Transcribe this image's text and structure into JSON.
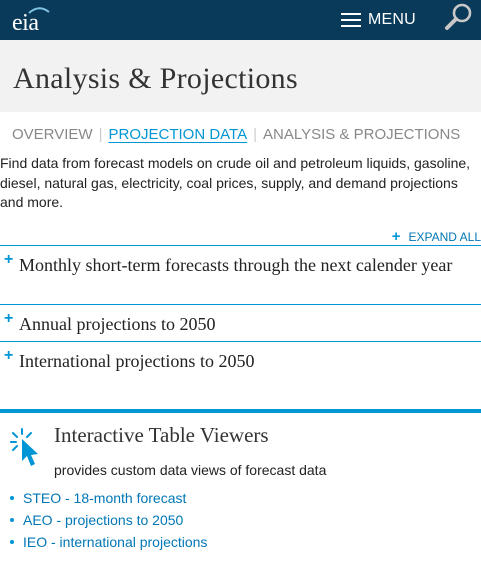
{
  "header": {
    "logo_text": "eia",
    "menu_label": "MENU",
    "icons": [
      "hamburger-icon",
      "search-icon"
    ],
    "bar_color": "#0a3a5a"
  },
  "page": {
    "title": "Analysis & Projections"
  },
  "subnav": {
    "tabs": [
      {
        "label": "OVERVIEW",
        "active": false
      },
      {
        "label": "PROJECTION DATA",
        "active": true
      },
      {
        "label": "ANALYSIS & PROJECTIONS",
        "active": false
      }
    ],
    "separator": "|"
  },
  "intro": {
    "text": "Find data from forecast models on crude oil and petroleum liquids, gasoline, diesel, natural gas, electricity, coal prices, supply, and demand projections and more."
  },
  "accordion": {
    "expand_all_label": "EXPAND ALL",
    "plus_symbol": "+",
    "items": [
      {
        "label": "Monthly short-term forecasts through the next calender year"
      },
      {
        "label": "Annual projections to 2050"
      },
      {
        "label": "International projections to 2050"
      }
    ]
  },
  "table_viewers": {
    "title": "Interactive Table Viewers",
    "description": "provides custom data views of forecast data",
    "icon": "cursor-click-icon",
    "links": [
      {
        "label": "STEO - 18-month forecast"
      },
      {
        "label": "AEO - projections to 2050"
      },
      {
        "label": "IEO - international projections"
      }
    ]
  },
  "colors": {
    "accent": "#0096d6",
    "link": "#0077b5",
    "title_band": "#f2f2f2"
  }
}
